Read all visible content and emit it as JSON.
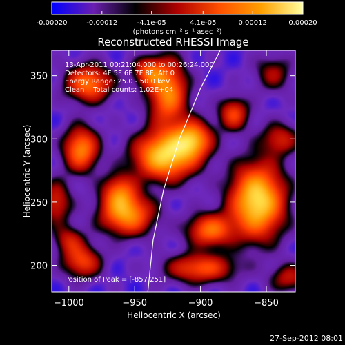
{
  "chart_data": {
    "type": "heatmap",
    "title": "Reconstructed RHESSI Image",
    "xlabel": "Heliocentric X (arcsec)",
    "ylabel": "Heliocentric Y (arcsec)",
    "xlim": [
      -1013,
      -828
    ],
    "ylim": [
      179,
      370
    ],
    "x_ticks": [
      -1000,
      -950,
      -900,
      -850
    ],
    "y_ticks": [
      200,
      250,
      300,
      350
    ],
    "colorbar": {
      "ticks": [
        "-0.00020",
        "-0.00012",
        "-4.1e-05",
        "4.1e-05",
        "0.00012",
        "0.00020"
      ],
      "tick_values": [
        -0.0002,
        -0.00012,
        -4.1e-05,
        4.1e-05,
        0.00012,
        0.0002
      ],
      "unit_label": "(photons cm⁻² s⁻¹ asec⁻²)",
      "colors": [
        "#0000ff",
        "#6a1fb0",
        "#000000",
        "#b00000",
        "#ff5000",
        "#ffa000",
        "#ffffa0"
      ]
    },
    "annotations": {
      "time": "13-Apr-2011 00:21:04.000 to 00:26:24.000",
      "detectors": "Detectors: 4F 5F 6F 7F 8F, Att 0",
      "energy": "Energy Range: 25.0 - 50.0 keV",
      "clean": "Clean    Total counts: 1.02E+04",
      "peak": "Position of Peak = [-857,251]"
    },
    "peak": {
      "x": -857,
      "y": 251
    },
    "limb_points": [
      [
        -940,
        179
      ],
      [
        -936,
        220
      ],
      [
        -928,
        260
      ],
      [
        -916,
        300
      ],
      [
        -900,
        340
      ],
      [
        -885,
        370
      ]
    ],
    "sources": [
      {
        "x": -857,
        "y": 251,
        "amp": 1.0,
        "sx": 14,
        "sy": 20
      },
      {
        "x": -927,
        "y": 287,
        "amp": 0.95,
        "sx": 16,
        "sy": 13
      },
      {
        "x": -906,
        "y": 300,
        "amp": 0.7,
        "sx": 10,
        "sy": 10
      },
      {
        "x": -991,
        "y": 292,
        "amp": 0.7,
        "sx": 9,
        "sy": 12
      },
      {
        "x": -956,
        "y": 240,
        "amp": 0.72,
        "sx": 14,
        "sy": 11
      },
      {
        "x": -962,
        "y": 258,
        "amp": 0.55,
        "sx": 9,
        "sy": 10
      },
      {
        "x": -925,
        "y": 337,
        "amp": 0.72,
        "sx": 10,
        "sy": 18
      },
      {
        "x": -985,
        "y": 344,
        "amp": 0.65,
        "sx": 12,
        "sy": 10
      },
      {
        "x": -940,
        "y": 353,
        "amp": 0.5,
        "sx": 8,
        "sy": 8
      },
      {
        "x": -893,
        "y": 228,
        "amp": 0.62,
        "sx": 12,
        "sy": 9
      },
      {
        "x": -900,
        "y": 198,
        "amp": 0.55,
        "sx": 18,
        "sy": 8
      },
      {
        "x": -990,
        "y": 203,
        "amp": 0.5,
        "sx": 10,
        "sy": 9
      },
      {
        "x": -875,
        "y": 320,
        "amp": 0.5,
        "sx": 8,
        "sy": 9
      },
      {
        "x": -840,
        "y": 300,
        "amp": 0.38,
        "sx": 10,
        "sy": 9
      },
      {
        "x": -845,
        "y": 352,
        "amp": 0.3,
        "sx": 10,
        "sy": 10
      },
      {
        "x": -1010,
        "y": 250,
        "amp": 0.42,
        "sx": 8,
        "sy": 12
      },
      {
        "x": -1000,
        "y": 220,
        "amp": 0.35,
        "sx": 8,
        "sy": 8
      },
      {
        "x": -833,
        "y": 190,
        "amp": 0.35,
        "sx": 10,
        "sy": 8
      }
    ]
  },
  "footer": {
    "timestamp": "27-Sep-2012 08:01"
  }
}
